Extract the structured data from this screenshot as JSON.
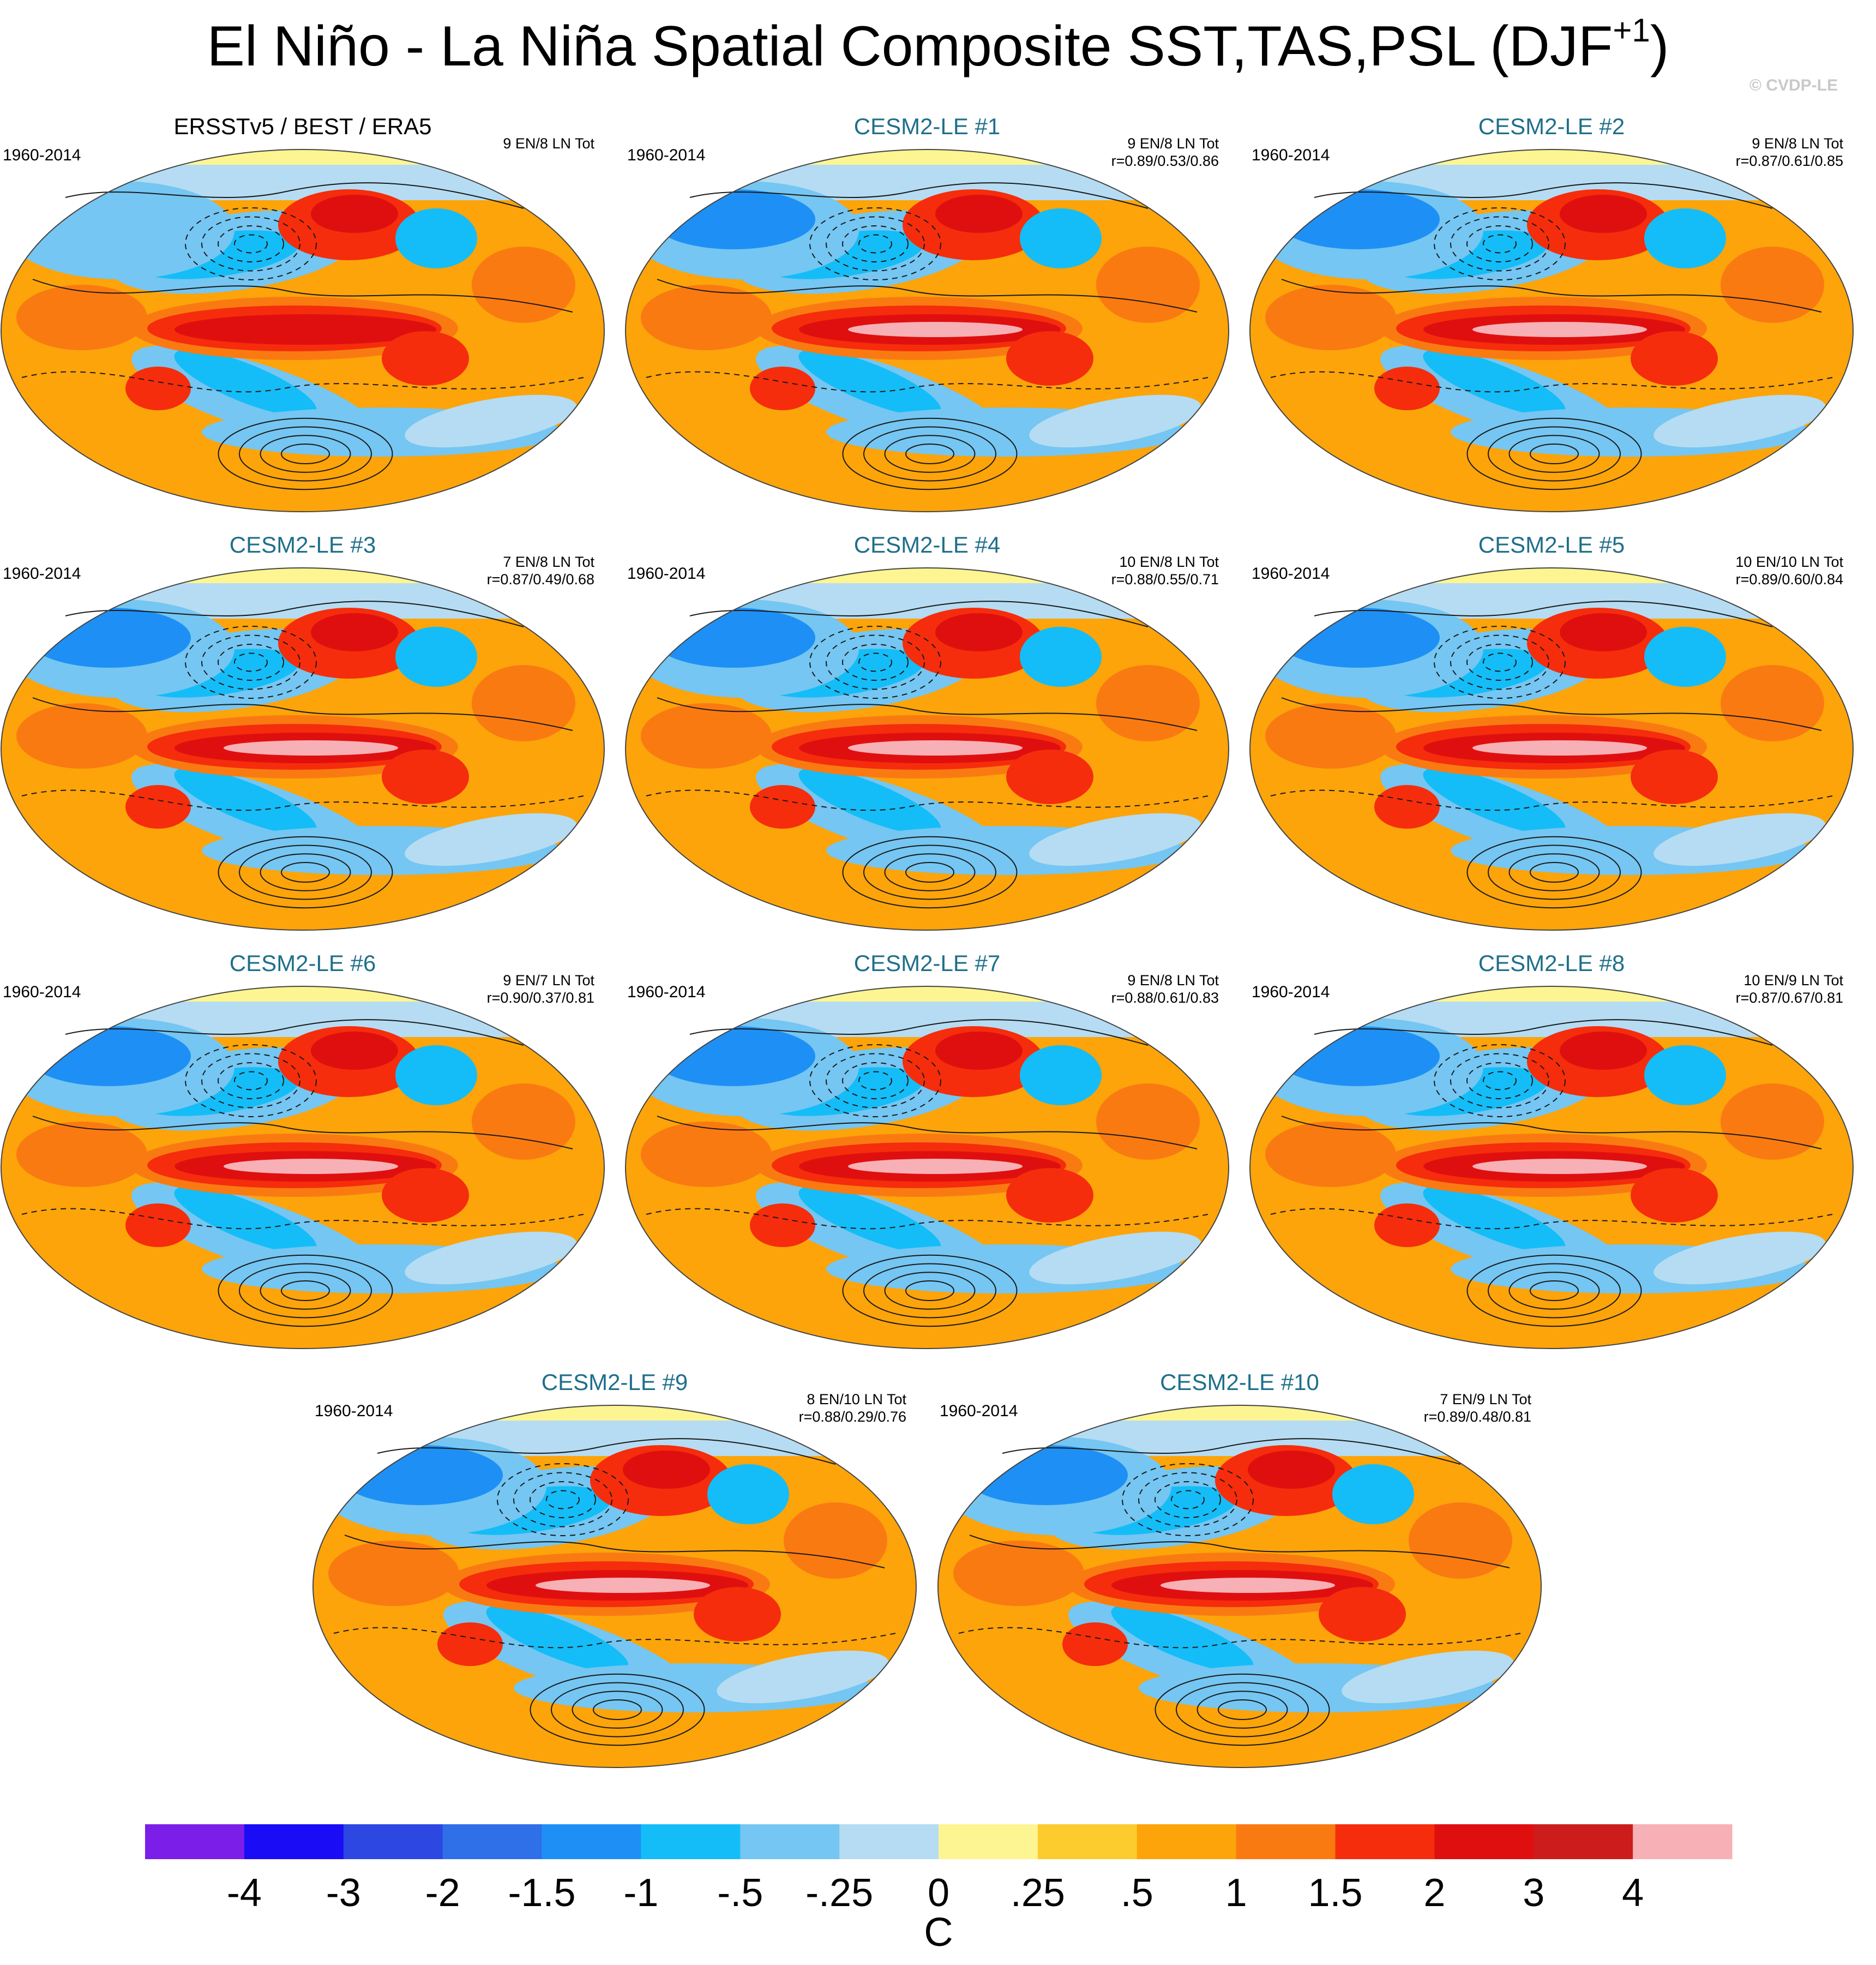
{
  "title": {
    "main": "El Niño - La Niña Spatial Composite SST,TAS,PSL (DJF",
    "superscript": "+1",
    "close": ")"
  },
  "credit": "© CVDP-LE",
  "chart_data": {
    "type": "heatmap",
    "description_kind": "composite map panels (Robinson-like global projection) with PSL contours",
    "panels": [
      {
        "title": "ERSSTv5 / BEST / ERA5",
        "period": "1960-2014",
        "counts": "9 EN/8 LN Tot",
        "correlation": "",
        "observational": true
      },
      {
        "title": "CESM2-LE #1",
        "period": "1960-2014",
        "counts": "9 EN/8 LN Tot",
        "correlation": "r=0.89/0.53/0.86"
      },
      {
        "title": "CESM2-LE #2",
        "period": "1960-2014",
        "counts": "9 EN/8 LN Tot",
        "correlation": "r=0.87/0.61/0.85"
      },
      {
        "title": "CESM2-LE #3",
        "period": "1960-2014",
        "counts": "7 EN/8 LN Tot",
        "correlation": "r=0.87/0.49/0.68"
      },
      {
        "title": "CESM2-LE #4",
        "period": "1960-2014",
        "counts": "10 EN/8 LN Tot",
        "correlation": "r=0.88/0.55/0.71"
      },
      {
        "title": "CESM2-LE #5",
        "period": "1960-2014",
        "counts": "10 EN/10 LN Tot",
        "correlation": "r=0.89/0.60/0.84"
      },
      {
        "title": "CESM2-LE #6",
        "period": "1960-2014",
        "counts": "9 EN/7 LN Tot",
        "correlation": "r=0.90/0.37/0.81"
      },
      {
        "title": "CESM2-LE #7",
        "period": "1960-2014",
        "counts": "9 EN/8 LN Tot",
        "correlation": "r=0.88/0.61/0.83"
      },
      {
        "title": "CESM2-LE #8",
        "period": "1960-2014",
        "counts": "10 EN/9 LN Tot",
        "correlation": "r=0.87/0.67/0.81"
      },
      {
        "title": "CESM2-LE #9",
        "period": "1960-2014",
        "counts": "8 EN/10 LN Tot",
        "correlation": "r=0.88/0.29/0.76"
      },
      {
        "title": "CESM2-LE #10",
        "period": "1960-2014",
        "counts": "7 EN/9 LN Tot",
        "correlation": "r=0.89/0.48/0.81"
      }
    ],
    "colorbar": {
      "unit": "C",
      "tick_labels": [
        "-4",
        "-3",
        "-2",
        "-1.5",
        "-1",
        "-.5",
        "-.25",
        "0",
        ".25",
        ".5",
        "1",
        "1.5",
        "2",
        "3",
        "4"
      ],
      "colors": [
        "#7b1fe8",
        "#1a0cf5",
        "#2d47e3",
        "#2f6fe8",
        "#1e90f5",
        "#14bdf7",
        "#75c6f2",
        "#b5dcf2",
        "#fcf591",
        "#fccc2e",
        "#fca40a",
        "#fa7a12",
        "#f52d0c",
        "#e00f0f",
        "#cc1c1c",
        "#f7b0b5"
      ]
    }
  }
}
